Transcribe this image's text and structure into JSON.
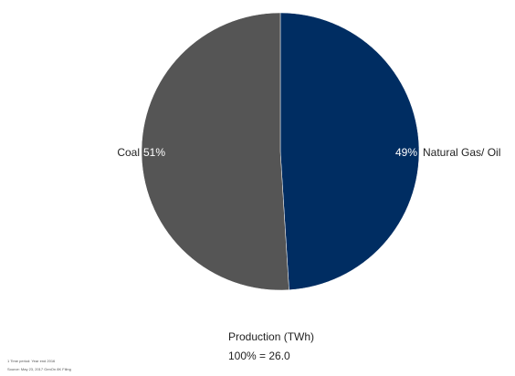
{
  "chart_data": {
    "type": "pie",
    "slices": [
      {
        "label": "Natural Gas/ Oil",
        "value": 49,
        "value_label": "49%",
        "color": "#002d62"
      },
      {
        "label": "Coal",
        "value": 51,
        "value_label": "51%",
        "color": "#555555"
      }
    ],
    "caption_title": "Production (TWh)",
    "caption_total": "100% = 26.0",
    "footnotes": [
      "1 Time period: Year end 2016",
      "Source: May 23, 2017 GenOn 8K Filing"
    ]
  }
}
